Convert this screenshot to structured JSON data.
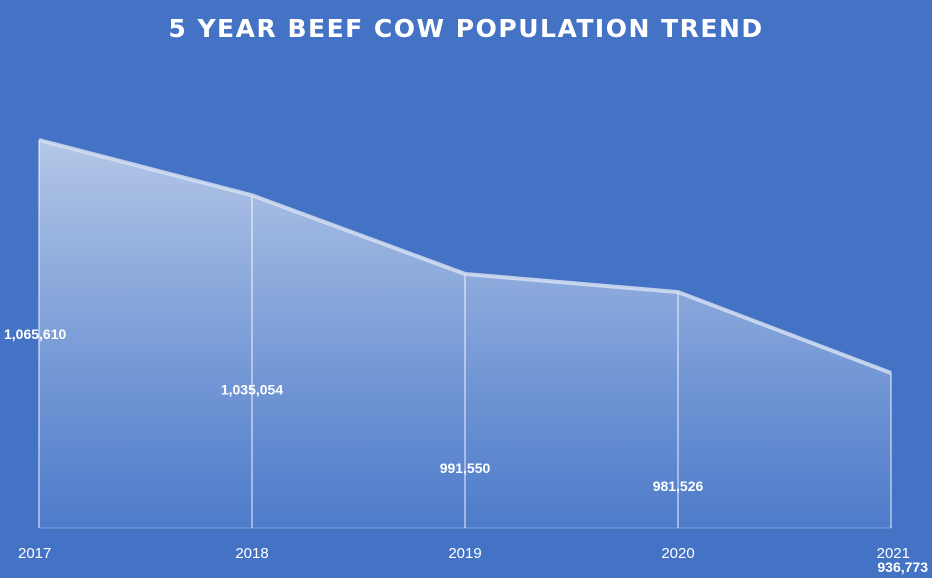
{
  "chart_data": {
    "type": "area",
    "title": "5 YEAR BEEF COW POPULATION TREND",
    "categories": [
      "2017",
      "2018",
      "2019",
      "2020",
      "2021"
    ],
    "series": [
      {
        "values": [
          1065610,
          1035054,
          991550,
          981526,
          936773
        ],
        "data_labels": [
          "1,065,610",
          "1,035,054",
          "991,550",
          "981,526",
          "936,773"
        ]
      }
    ],
    "xlabel": "",
    "ylabel": "",
    "grid": false,
    "legend": "none",
    "colors": {
      "background": "#4472c4",
      "area_top": "#b4c7e7",
      "area_bottom": "#4f7ccb",
      "line": "#d6e0f2",
      "text": "#ffffff"
    }
  }
}
